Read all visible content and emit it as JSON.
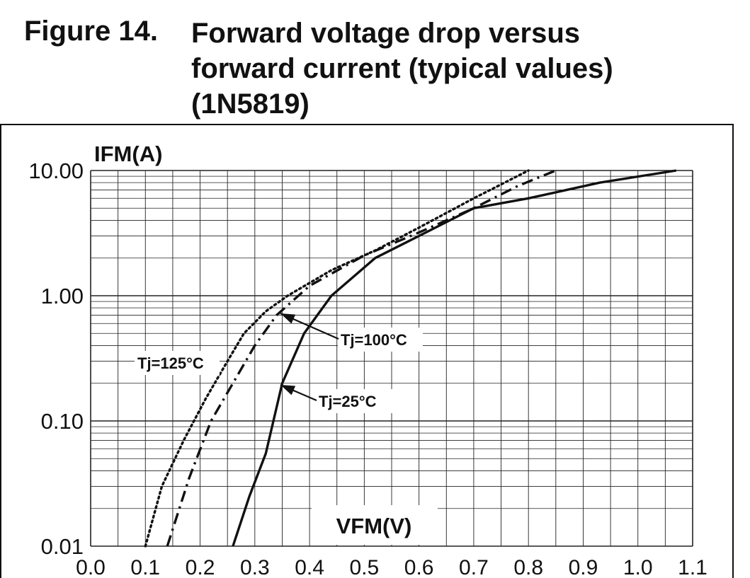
{
  "figure": {
    "number": "Figure 14.",
    "title_lines": [
      "Forward voltage drop versus",
      "forward current (typical values)",
      "(1N5819)"
    ]
  },
  "chart_data": {
    "type": "line",
    "y_scale": "log",
    "xlabel": "VFM(V)",
    "ylabel": "IFM(A)",
    "xlim": [
      0.0,
      1.1
    ],
    "ylim": [
      0.01,
      10.0
    ],
    "x_ticks": [
      "0.0",
      "0.1",
      "0.2",
      "0.3",
      "0.4",
      "0.5",
      "0.6",
      "0.7",
      "0.8",
      "0.9",
      "1.0",
      "1.1"
    ],
    "y_ticks": [
      {
        "value": 10.0,
        "label": "10.00"
      },
      {
        "value": 1.0,
        "label": "1.00"
      },
      {
        "value": 0.1,
        "label": "0.10"
      },
      {
        "value": 0.01,
        "label": "0.01"
      }
    ],
    "grid": true,
    "series": [
      {
        "name": "Tj=25°C",
        "style": "solid",
        "x": [
          0.26,
          0.29,
          0.32,
          0.35,
          0.39,
          0.44,
          0.52,
          0.6,
          0.7,
          0.8,
          0.93,
          1.07
        ],
        "y": [
          0.01,
          0.025,
          0.055,
          0.2,
          0.5,
          1.0,
          2.0,
          3.0,
          5.0,
          6.0,
          8.0,
          10.0
        ]
      },
      {
        "name": "Tj=100°C",
        "style": "dashdot",
        "x": [
          0.14,
          0.18,
          0.22,
          0.26,
          0.3,
          0.34,
          0.4,
          0.5,
          0.6,
          0.7,
          0.78,
          0.85
        ],
        "y": [
          0.01,
          0.035,
          0.1,
          0.2,
          0.4,
          0.7,
          1.2,
          2.1,
          3.2,
          5.0,
          7.5,
          10.0
        ]
      },
      {
        "name": "Tj=125°C",
        "style": "dotted",
        "x": [
          0.1,
          0.13,
          0.17,
          0.21,
          0.25,
          0.28,
          0.32,
          0.36,
          0.44,
          0.52,
          0.6,
          0.7,
          0.8
        ],
        "y": [
          0.01,
          0.03,
          0.07,
          0.15,
          0.3,
          0.5,
          0.75,
          1.0,
          1.6,
          2.3,
          3.5,
          6.0,
          10.0
        ]
      }
    ],
    "annotations": [
      {
        "text": "Tj=125°C",
        "series": "Tj=125°C"
      },
      {
        "text": "Tj=100°C",
        "series": "Tj=100°C"
      },
      {
        "text": "Tj=25°C",
        "series": "Tj=25°C"
      }
    ]
  }
}
